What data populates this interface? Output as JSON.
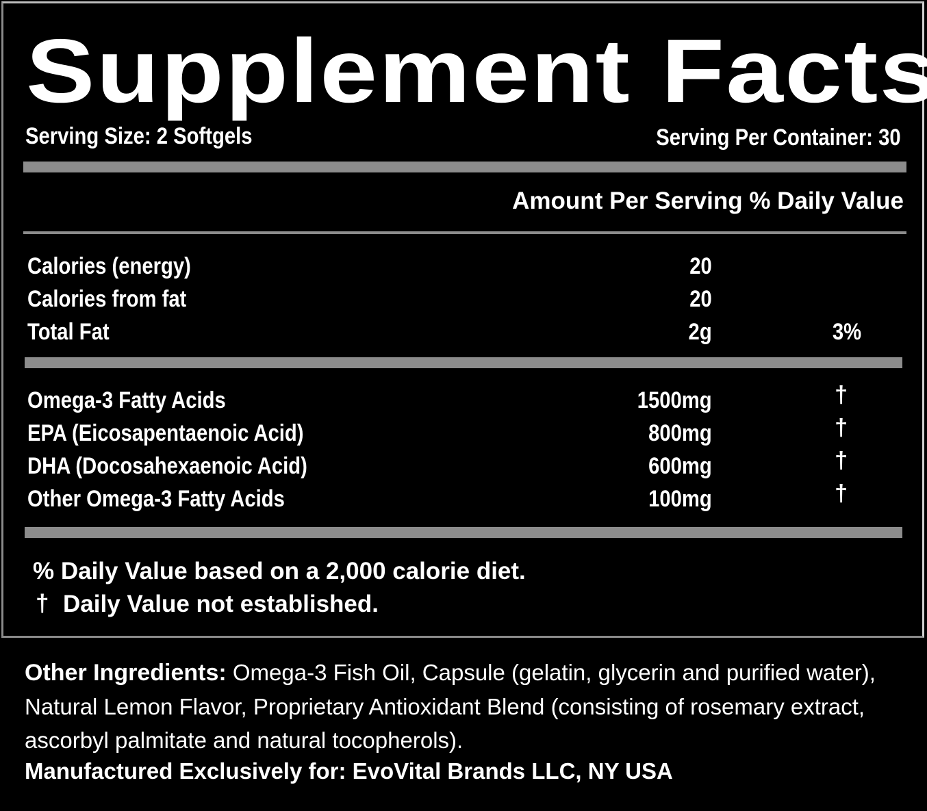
{
  "title": "Supplement Facts",
  "serving_size": "Serving Size: 2 Softgels",
  "servings_per_container": "Serving Per Container: 30",
  "column_header": "Amount Per Serving % Daily Value",
  "rows_group1": [
    {
      "name": "Calories (energy)",
      "amount": "20",
      "dv": ""
    },
    {
      "name": "Calories from fat",
      "amount": "20",
      "dv": ""
    },
    {
      "name": "Total Fat",
      "amount": "2g",
      "dv": "3%"
    }
  ],
  "rows_group2": [
    {
      "name": "Omega-3 Fatty Acids",
      "amount": "1500mg",
      "dv": "†"
    },
    {
      "name": "EPA (Eicosapentaenoic Acid)",
      "amount": "800mg",
      "dv": "†"
    },
    {
      "name": "DHA (Docosahexaenoic Acid)",
      "amount": "600mg",
      "dv": "†"
    },
    {
      "name": "Other Omega-3 Fatty Acids",
      "amount": "100mg",
      "dv": "†"
    }
  ],
  "footnote_dv": "% Daily Value based on a 2,000 calorie diet.",
  "footnote_dagger_symbol": "†",
  "footnote_dagger": "Daily Value not established.",
  "other_ingredients_label": "Other Ingredients:",
  "other_ingredients": "Omega-3 Fish Oil, Capsule (gelatin, glycerin and purified water), Natural Lemon Flavor, Proprietary Antioxidant Blend (consisting of rosemary extract, ascorbyl palmitate and natural tocopherols).",
  "manufacturer": "Manufactured Exclusively for: EvoVital Brands LLC, NY USA",
  "colors": {
    "background": "#000000",
    "text": "#ffffff",
    "rule": "#8c8c8c"
  }
}
